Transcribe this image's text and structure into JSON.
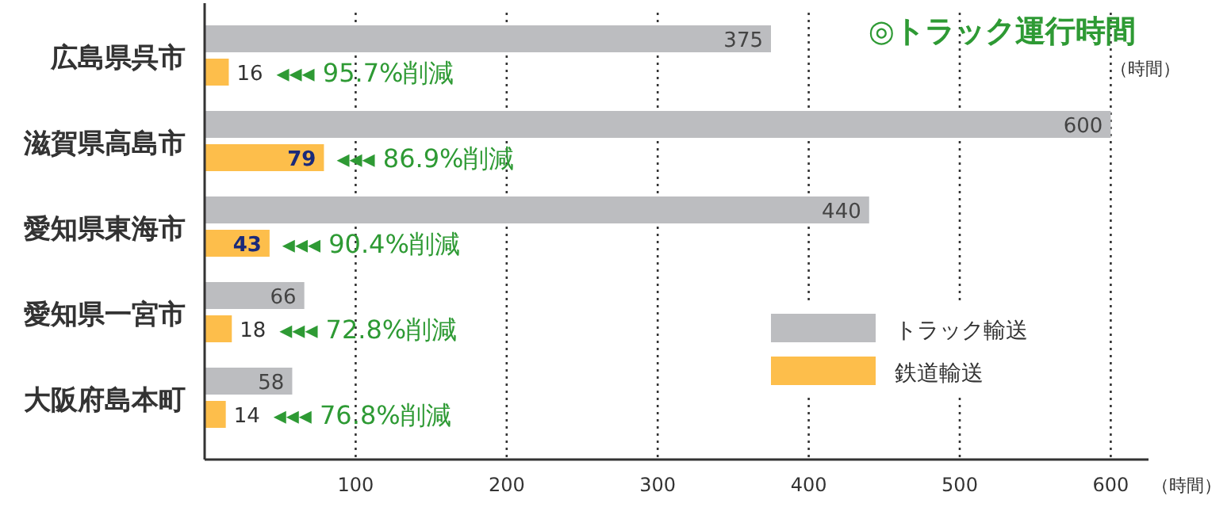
{
  "chart_data": {
    "type": "bar",
    "orientation": "horizontal",
    "title": "◎トラック運行時間",
    "xlabel": "（時間）",
    "categories": [
      "広島県呉市",
      "滋賀県高島市",
      "愛知県東海市",
      "愛知県一宮市",
      "大阪府島本町"
    ],
    "series": [
      {
        "name": "トラック輸送",
        "color": "#bcbdc0",
        "values": [
          375,
          600,
          440,
          66,
          58
        ]
      },
      {
        "name": "鉄道輸送",
        "color": "#fdbe4b",
        "values": [
          16,
          79,
          43,
          18,
          14
        ]
      }
    ],
    "xlim": [
      0,
      625
    ],
    "xticks": [
      100,
      200,
      300,
      400,
      500,
      600
    ],
    "grid": "x",
    "data_labels": true,
    "legend": "bottom right",
    "annotations": [
      "（時間）",
      {
        "text": "◂◂◂ 95.7%削減",
        "x": 16,
        "y": "広島県呉市"
      },
      {
        "text": "◂◂◂ 86.9%削減",
        "x": 79,
        "y": "滋賀県高島市"
      },
      {
        "text": "◂◂◂ 90.4%削減",
        "x": 43,
        "y": "愛知県東海市"
      },
      {
        "text": "◂◂◂ 72.8%削減",
        "x": 18,
        "y": "愛知県一宮市"
      },
      {
        "text": "◂◂◂ 76.8%削減",
        "x": 14,
        "y": "大阪府島本町"
      }
    ]
  }
}
